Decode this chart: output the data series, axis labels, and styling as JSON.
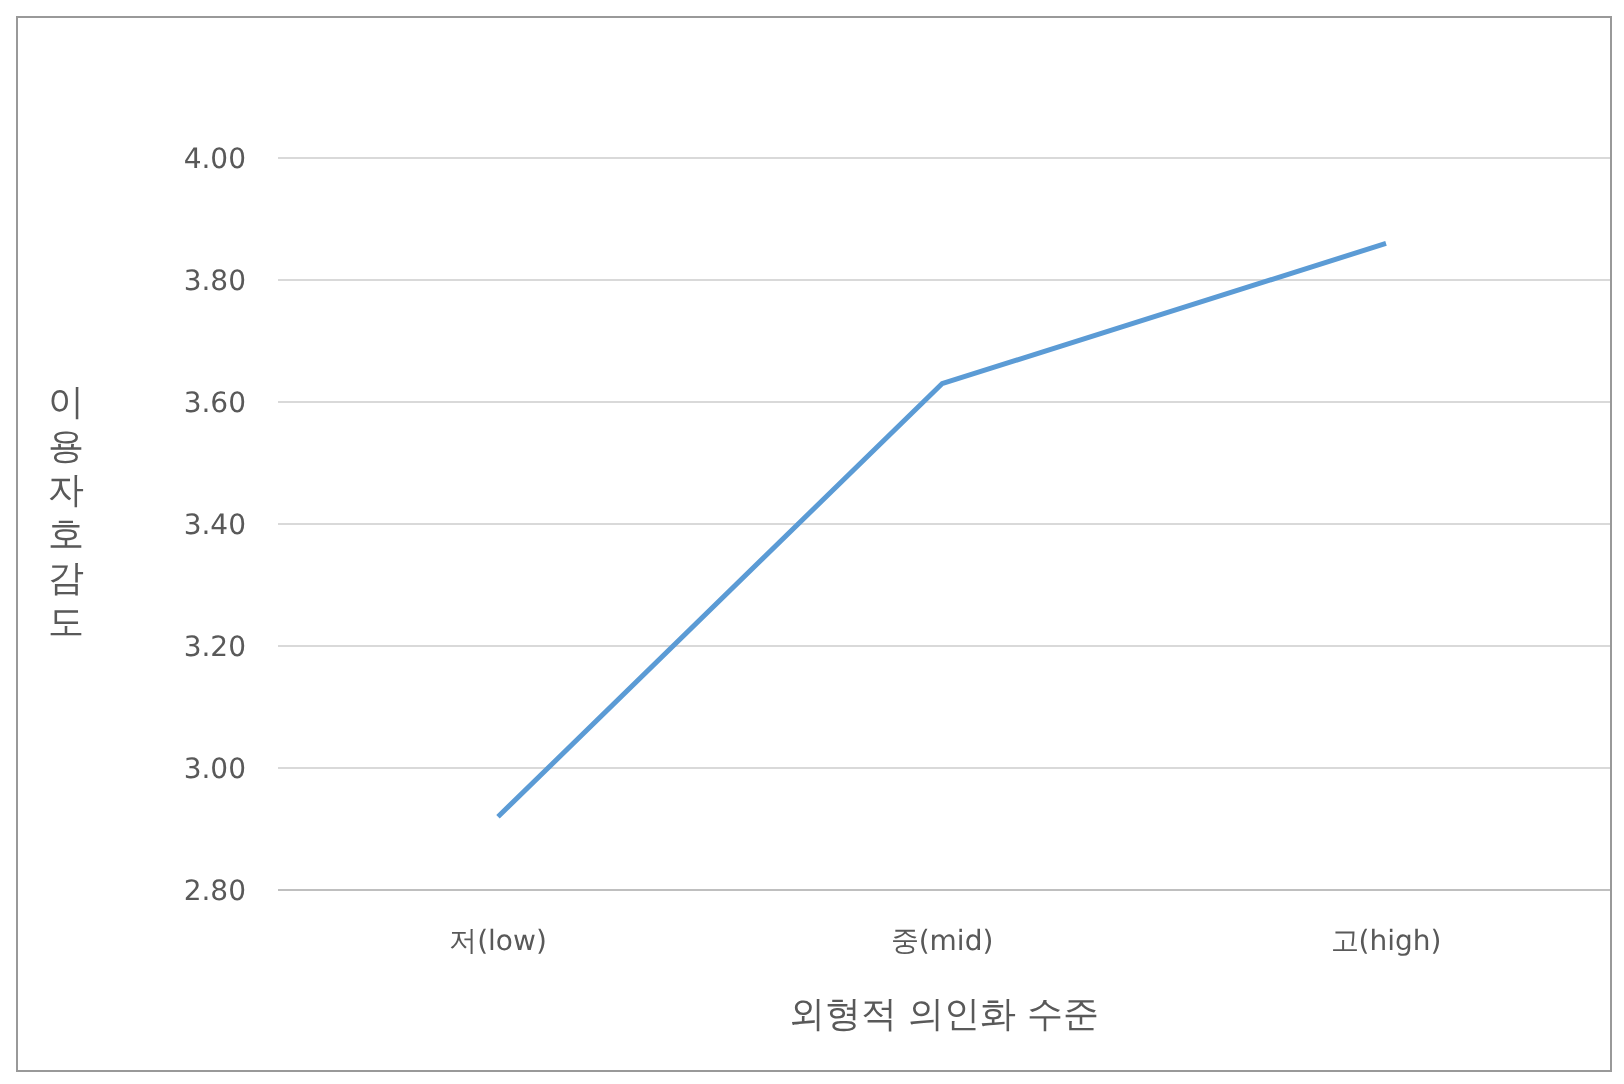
{
  "chart_data": {
    "type": "line",
    "xlabel": "외형적 의인화 수준",
    "ylabel": "이용자 호감도",
    "categories": [
      "저(low)",
      "중(mid)",
      "고(high)"
    ],
    "series": [
      {
        "color": "#5b9bd5",
        "values": [
          2.92,
          3.63,
          3.86
        ]
      }
    ],
    "ylim": [
      2.8,
      4.0
    ],
    "yticks": [
      {
        "value": 2.8,
        "label": "2.80"
      },
      {
        "value": 3.0,
        "label": "3.00"
      },
      {
        "value": 3.2,
        "label": "3.20"
      },
      {
        "value": 3.4,
        "label": "3.40"
      },
      {
        "value": 3.6,
        "label": "3.60"
      },
      {
        "value": 3.8,
        "label": "3.80"
      },
      {
        "value": 4.0,
        "label": "4.00"
      }
    ],
    "grid": "y",
    "legend": false,
    "marker": "none",
    "line_style": "solid"
  }
}
